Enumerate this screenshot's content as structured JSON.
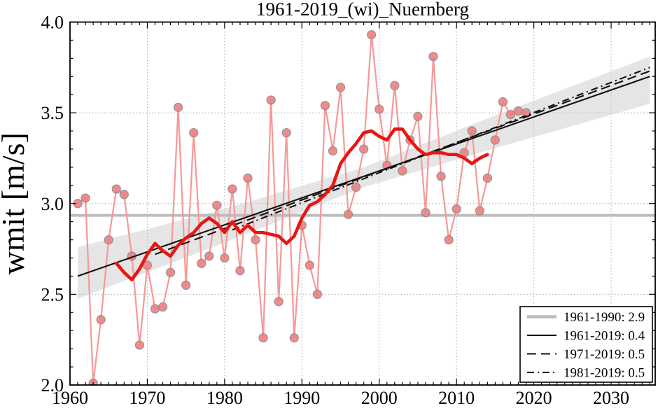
{
  "figure": {
    "kind": "climate-trend-plot",
    "station_title": "1961-2019_(wi)_Nuernberg",
    "y_axis_label": "wmit [m/s]"
  },
  "chart_data": {
    "type": "line",
    "title": "1961-2019_(wi)_Nuernberg",
    "xlabel": "",
    "ylabel": "wmit [m/s]",
    "xlim": [
      1960,
      2035.7
    ],
    "ylim": [
      2.0,
      4.0
    ],
    "grid": true,
    "x_tick_labels": [
      "1960",
      "1970",
      "1980",
      "1990",
      "2000",
      "2010",
      "2020",
      "2030"
    ],
    "x_major_ticks": [
      1960,
      1970,
      1980,
      1990,
      2000,
      2010,
      2020,
      2030
    ],
    "y_tick_labels": [
      "2.0",
      "2.5",
      "3.0",
      "3.5",
      "4.0"
    ],
    "y_major_ticks": [
      2.0,
      2.5,
      3.0,
      3.5,
      4.0
    ],
    "x_minor_step": 1,
    "y_minor_step": 0.1,
    "style": {
      "annual_point_fill": "#f08080",
      "annual_point_edge": "#8c8c8c",
      "annual_line_color": "#f79898",
      "smoothed_line_color": "#e81515",
      "trend_line_color": "#111111",
      "reference_line_color": "#bcbcbc",
      "band_fill": "#cccccc",
      "grid_color": "#a8a8a8",
      "frame_color": "#000000"
    },
    "series": [
      {
        "name": "annual_values",
        "type": "scatter_line",
        "years": [
          1961,
          1962,
          1963,
          1964,
          1965,
          1966,
          1967,
          1968,
          1969,
          1970,
          1971,
          1972,
          1973,
          1974,
          1975,
          1976,
          1977,
          1978,
          1979,
          1980,
          1981,
          1982,
          1983,
          1984,
          1985,
          1986,
          1987,
          1988,
          1989,
          1990,
          1991,
          1992,
          1993,
          1994,
          1995,
          1996,
          1997,
          1998,
          1999,
          2000,
          2001,
          2002,
          2003,
          2004,
          2005,
          2006,
          2007,
          2008,
          2009,
          2010,
          2011,
          2012,
          2013,
          2014,
          2015,
          2016,
          2017,
          2018,
          2019
        ],
        "values": [
          3.0,
          3.03,
          2.01,
          2.36,
          2.8,
          3.08,
          3.05,
          2.71,
          2.22,
          2.66,
          2.42,
          2.43,
          2.62,
          3.53,
          2.55,
          3.39,
          2.67,
          2.71,
          2.99,
          2.7,
          3.08,
          2.63,
          3.14,
          2.8,
          2.26,
          3.57,
          2.46,
          3.39,
          2.26,
          2.88,
          2.66,
          2.5,
          3.54,
          3.29,
          3.64,
          2.94,
          3.09,
          3.3,
          3.93,
          3.52,
          3.21,
          3.65,
          3.18,
          3.35,
          3.48,
          2.95,
          3.81,
          3.15,
          2.8,
          2.97,
          3.28,
          3.4,
          2.96,
          3.14,
          3.35,
          3.56,
          3.49,
          3.51,
          3.5
        ]
      },
      {
        "name": "smoothed_mean",
        "type": "line",
        "years": [
          1966,
          1967,
          1968,
          1969,
          1970,
          1971,
          1972,
          1973,
          1974,
          1975,
          1976,
          1977,
          1978,
          1979,
          1980,
          1981,
          1982,
          1983,
          1984,
          1985,
          1986,
          1987,
          1988,
          1989,
          1990,
          1991,
          1992,
          1993,
          1994,
          1995,
          1996,
          1997,
          1998,
          1999,
          2000,
          2001,
          2002,
          2003,
          2004,
          2005,
          2006,
          2007,
          2008,
          2009,
          2010,
          2011,
          2012,
          2013,
          2014
        ],
        "values": [
          2.67,
          2.62,
          2.58,
          2.64,
          2.72,
          2.78,
          2.74,
          2.71,
          2.77,
          2.81,
          2.84,
          2.89,
          2.92,
          2.89,
          2.84,
          2.9,
          2.84,
          2.88,
          2.84,
          2.84,
          2.83,
          2.82,
          2.78,
          2.82,
          2.92,
          2.99,
          3.01,
          3.05,
          3.1,
          3.22,
          3.28,
          3.33,
          3.39,
          3.4,
          3.37,
          3.35,
          3.41,
          3.41,
          3.35,
          3.3,
          3.27,
          3.28,
          3.28,
          3.27,
          3.27,
          3.25,
          3.22,
          3.25,
          3.27
        ]
      },
      {
        "name": "reference_1961_1990",
        "type": "hline",
        "value": 2.935,
        "label": "1961-1990: 2.9"
      },
      {
        "name": "trend_1961_2019",
        "type": "trend",
        "x": [
          1961,
          2035
        ],
        "values": [
          2.6,
          3.7
        ],
        "dash": "solid",
        "label": "1961-2019: 0.4"
      },
      {
        "name": "trend_1971_2019",
        "type": "trend",
        "x": [
          1971,
          2035
        ],
        "values": [
          2.72,
          3.73
        ],
        "dash": "dashed",
        "label": "1971-2019: 0.5"
      },
      {
        "name": "trend_1981_2019",
        "type": "trend",
        "x": [
          1981,
          2035
        ],
        "values": [
          2.855,
          3.75
        ],
        "dash": "dashdot",
        "label": "1981-2019: 0.5"
      },
      {
        "name": "confidence_band",
        "type": "band",
        "x": [
          1961,
          1980,
          1998,
          2015,
          2035
        ],
        "upper": [
          2.76,
          2.97,
          3.2,
          3.485,
          3.81
        ],
        "lower": [
          2.475,
          2.785,
          3.09,
          3.305,
          3.55
        ]
      }
    ],
    "legend": {
      "position": "lower right",
      "entries": [
        {
          "label": "1961-1990: 2.9",
          "line": "reference"
        },
        {
          "label": "1961-2019: 0.4",
          "line": "solid"
        },
        {
          "label": "1971-2019: 0.5",
          "line": "dashed"
        },
        {
          "label": "1981-2019: 0.5",
          "line": "dashdot"
        }
      ]
    }
  }
}
